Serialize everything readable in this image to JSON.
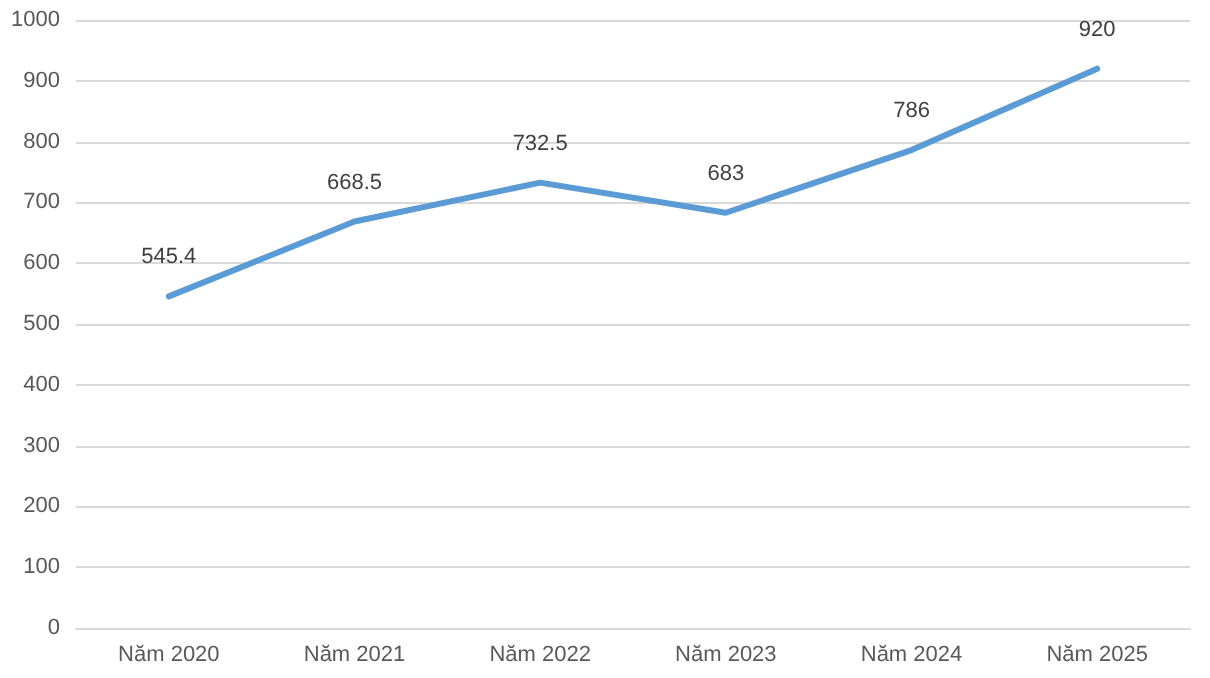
{
  "chart_data": {
    "type": "line",
    "categories": [
      "Năm 2020",
      "Năm 2021",
      "Năm 2022",
      "Năm 2023",
      "Năm 2024",
      "Năm 2025"
    ],
    "series": [
      {
        "color": "#5b9bd5",
        "values": [
          545.4,
          668.5,
          732.5,
          683,
          786,
          920
        ]
      }
    ],
    "ylim": [
      0,
      1000
    ],
    "yticks": [
      0,
      100,
      200,
      300,
      400,
      500,
      600,
      700,
      800,
      900,
      1000
    ],
    "grid": "y",
    "data_labels": true,
    "marker": "none",
    "line_style": "solid"
  }
}
